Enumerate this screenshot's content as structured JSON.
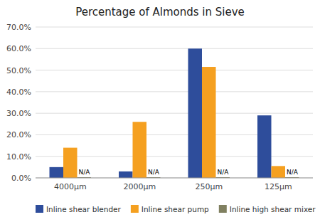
{
  "chart_data": {
    "type": "bar",
    "title": "Percentage of Almonds in Sieve",
    "categories": [
      "4000μm",
      "2000μm",
      "250μm",
      "125μm"
    ],
    "series": [
      {
        "name": "Inline shear blender",
        "color": "#2e4d9b",
        "values": [
          5.0,
          3.0,
          60.0,
          29.0
        ]
      },
      {
        "name": "Inline shear pump",
        "color": "#f5a020",
        "values": [
          14.0,
          26.0,
          51.5,
          5.5
        ]
      },
      {
        "name": "Inline high shear mixer",
        "color": "#808060",
        "values": [
          0.3,
          0.3,
          0.3,
          0.3
        ],
        "annotations": [
          "N/A",
          "N/A",
          "N/A",
          "N/A"
        ]
      }
    ],
    "ylim": [
      0,
      70.0
    ],
    "yticks": [
      {
        "value": 0.0,
        "label": "0.0%"
      },
      {
        "value": 10.0,
        "label": "10.0%"
      },
      {
        "value": 20.0,
        "label": "20.0%"
      },
      {
        "value": 30.0,
        "label": "30.0%"
      },
      {
        "value": 40.0,
        "label": "40.0%"
      },
      {
        "value": 50.0,
        "label": "50.0%"
      },
      {
        "value": 60.0,
        "label": "60.0%"
      },
      {
        "value": 70.0,
        "label": "70.0%"
      }
    ],
    "grid": true,
    "legend": "bottom-left"
  }
}
